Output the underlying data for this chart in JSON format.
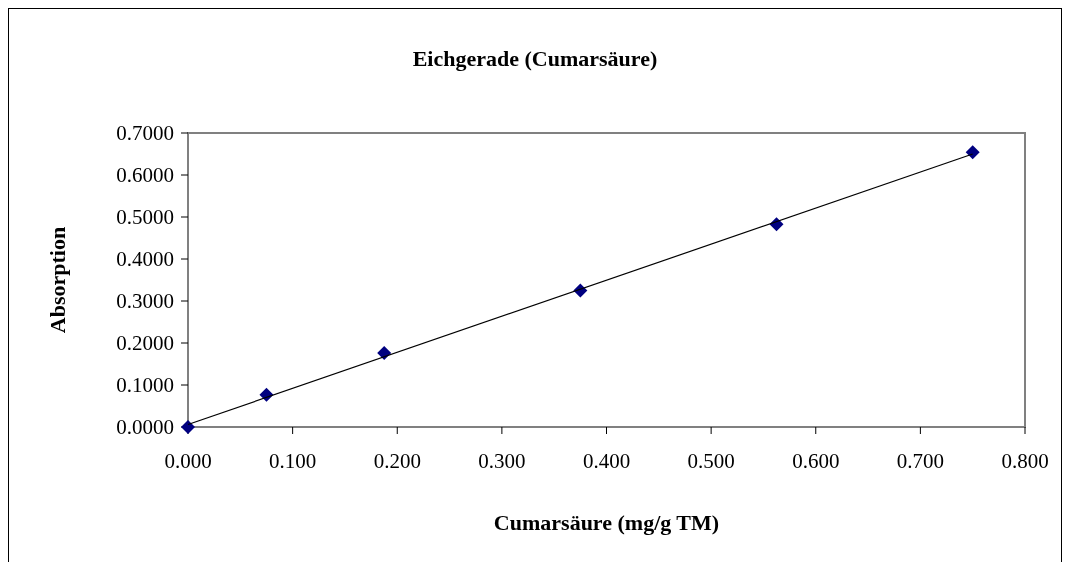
{
  "chart_data": {
    "type": "scatter",
    "title": "Eichgerade (Cumarsäure)",
    "xlabel": "Cumarsäure (mg/g TM)",
    "ylabel": "Absorption",
    "x": [
      0,
      0.075,
      0.1875,
      0.375,
      0.5625,
      0.75
    ],
    "series": [
      {
        "color": "#000080",
        "values": [
          0,
          0.077,
          0.176,
          0.325,
          0.483,
          0.654
        ],
        "marker": "diamond"
      },
      {
        "type": "line",
        "color": "#000000",
        "x": [
          0,
          0.75
        ],
        "values": [
          0.006,
          0.65
        ],
        "marker": "none",
        "line_style": "solid"
      }
    ],
    "xlim": [
      0,
      0.8
    ],
    "xticks": [
      {
        "value": 0,
        "label": "0.000"
      },
      {
        "value": 0.1,
        "label": "0.100"
      },
      {
        "value": 0.2,
        "label": "0.200"
      },
      {
        "value": 0.3,
        "label": "0.300"
      },
      {
        "value": 0.4,
        "label": "0.400"
      },
      {
        "value": 0.5,
        "label": "0.500"
      },
      {
        "value": 0.6,
        "label": "0.600"
      },
      {
        "value": 0.7,
        "label": "0.700"
      },
      {
        "value": 0.8,
        "label": "0.800"
      }
    ],
    "ylim": [
      0,
      0.7
    ],
    "yticks": [
      {
        "value": 0,
        "label": "0.0000"
      },
      {
        "value": 0.1,
        "label": "0.1000"
      },
      {
        "value": 0.2,
        "label": "0.2000"
      },
      {
        "value": 0.3,
        "label": "0.3000"
      },
      {
        "value": 0.4,
        "label": "0.4000"
      },
      {
        "value": 0.5,
        "label": "0.5000"
      },
      {
        "value": 0.6,
        "label": "0.6000"
      },
      {
        "value": 0.7,
        "label": "0.7000"
      }
    ],
    "grid": false
  }
}
